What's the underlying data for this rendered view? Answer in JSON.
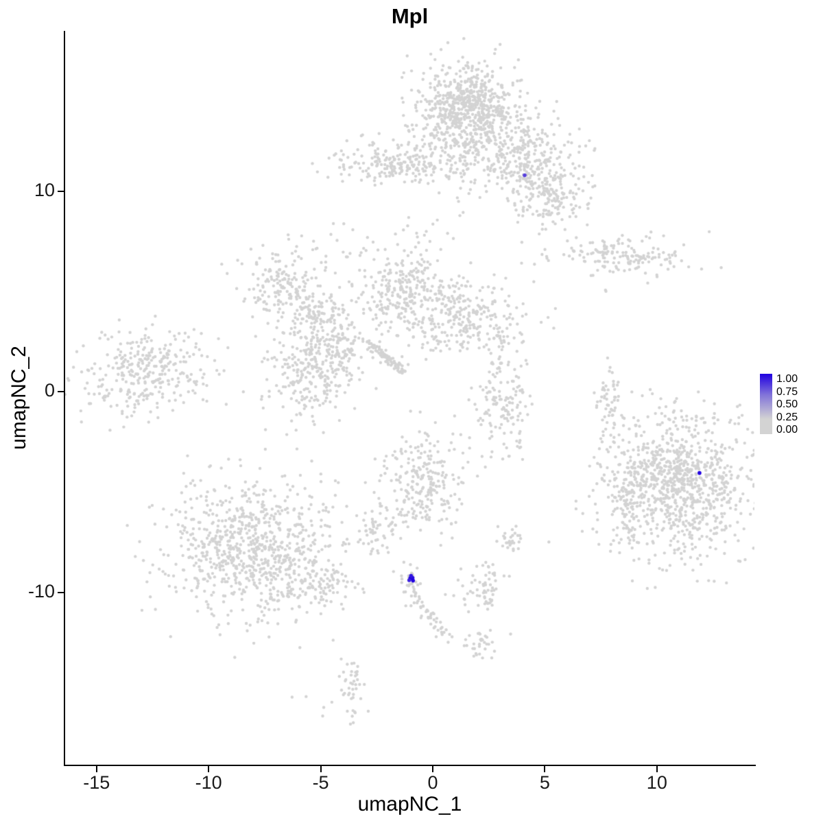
{
  "chart_data": {
    "type": "scatter",
    "title": "Mpl",
    "xlabel": "umapNC_1",
    "ylabel": "umapNC_2",
    "xlim": [
      -16.4,
      14.35
    ],
    "ylim": [
      -18.6,
      18.0
    ],
    "xticks": [
      -15,
      -10,
      -5,
      0,
      5,
      10
    ],
    "yticks": [
      10,
      0,
      -10
    ],
    "grid": false,
    "point_color_low": "#D3D3D3",
    "point_color_high": "#2000E0",
    "point_radius": 2.2,
    "description": "UMAP feature plot of Mpl expression; nearly all cells grey (0.00), a few blue high-expression cells",
    "clusters": [
      {
        "name": "top-main",
        "cx": 1.8,
        "cy": 13.4,
        "rx": 1.35,
        "ry": 1.5,
        "n": 600
      },
      {
        "name": "top-main-core",
        "cx": 1.5,
        "cy": 14.2,
        "rx": 0.85,
        "ry": 0.85,
        "n": 280
      },
      {
        "name": "top-right-branch",
        "cx": 4.3,
        "cy": 11.3,
        "rx": 1.05,
        "ry": 1.1,
        "n": 260
      },
      {
        "name": "top-right-lower",
        "cx": 5.2,
        "cy": 9.7,
        "rx": 0.85,
        "ry": 0.85,
        "n": 130
      },
      {
        "name": "top-left-small",
        "cx": -2.4,
        "cy": 11.5,
        "rx": 1.15,
        "ry": 0.55,
        "n": 150
      },
      {
        "name": "top-bridge",
        "cx": -0.6,
        "cy": 11.3,
        "rx": 0.9,
        "ry": 0.3,
        "n": 40
      },
      {
        "name": "right-wing",
        "cx": 8.6,
        "cy": 6.8,
        "rx": 1.55,
        "ry": 0.5,
        "n": 160
      },
      {
        "name": "right-wing-dot",
        "cx": 7.8,
        "cy": 5.0,
        "rx": 0.08,
        "ry": 0.08,
        "n": 2
      },
      {
        "name": "upper-left-1",
        "cx": -6.6,
        "cy": 5.3,
        "rx": 0.95,
        "ry": 0.85,
        "n": 170
      },
      {
        "name": "upper-left-2",
        "cx": -5.1,
        "cy": 3.9,
        "rx": 0.7,
        "ry": 0.7,
        "n": 110
      },
      {
        "name": "upper-left-3",
        "cx": -5.4,
        "cy": 1.0,
        "rx": 0.95,
        "ry": 1.1,
        "n": 260
      },
      {
        "name": "upper-left-4",
        "cx": -4.3,
        "cy": 2.4,
        "rx": 0.55,
        "ry": 0.55,
        "n": 80
      },
      {
        "name": "upper-left-sparse",
        "cx": -4.2,
        "cy": 7.3,
        "rx": 1.3,
        "ry": 0.9,
        "n": 28
      },
      {
        "name": "center-upper",
        "cx": -1.3,
        "cy": 5.0,
        "rx": 1.0,
        "ry": 1.1,
        "n": 250
      },
      {
        "name": "center-right",
        "cx": 1.4,
        "cy": 3.7,
        "rx": 1.35,
        "ry": 0.95,
        "n": 270
      },
      {
        "name": "center-sparse-top",
        "cx": -0.5,
        "cy": 7.6,
        "rx": 0.8,
        "ry": 0.6,
        "n": 14
      },
      {
        "name": "center-streak",
        "cx": -2.9,
        "cy": 2.5,
        "x2": -1.3,
        "y2": 1.0,
        "jitter": 0.12,
        "n": 80
      },
      {
        "name": "far-left",
        "cx": -12.8,
        "cy": 1.0,
        "rx": 1.5,
        "ry": 1.1,
        "n": 320
      },
      {
        "name": "mid-vertical",
        "cx": 3.1,
        "cy": -0.7,
        "rx": 0.65,
        "ry": 1.4,
        "n": 150
      },
      {
        "name": "thin-vertical",
        "cx": 7.9,
        "cy": -0.9,
        "rx": 0.28,
        "ry": 1.25,
        "n": 60
      },
      {
        "name": "big-right",
        "cx": 10.9,
        "cy": -4.7,
        "rx": 1.6,
        "ry": 1.8,
        "n": 950
      },
      {
        "name": "big-right-edge",
        "cx": 8.8,
        "cy": -5.0,
        "rx": 0.45,
        "ry": 1.5,
        "n": 80
      },
      {
        "name": "center-bottom",
        "cx": -0.4,
        "cy": -4.6,
        "rx": 0.9,
        "ry": 1.4,
        "n": 250
      },
      {
        "name": "bottom-left-big",
        "cx": -8.0,
        "cy": -7.9,
        "rx": 2.0,
        "ry": 1.7,
        "n": 850
      },
      {
        "name": "bottom-left-tail",
        "cx": -4.9,
        "cy": -9.7,
        "rx": 0.8,
        "ry": 0.5,
        "n": 70
      },
      {
        "name": "small-left-mid",
        "cx": -2.4,
        "cy": -7.0,
        "rx": 0.4,
        "ry": 0.5,
        "n": 45
      },
      {
        "name": "small-right-mid",
        "cx": 3.4,
        "cy": -7.4,
        "rx": 0.3,
        "ry": 0.4,
        "n": 28
      },
      {
        "name": "mpl-site-grey",
        "cx": -0.95,
        "cy": -9.6,
        "rx": 0.25,
        "ry": 0.4,
        "n": 30
      },
      {
        "name": "below-trail",
        "cx": -0.8,
        "cy": -10.2,
        "x2": 0.6,
        "y2": -12.3,
        "jitter": 0.16,
        "n": 45
      },
      {
        "name": "small-lower",
        "cx": 2.3,
        "cy": -9.8,
        "rx": 0.55,
        "ry": 0.65,
        "n": 60
      },
      {
        "name": "blob-lower",
        "cx": 2.2,
        "cy": -12.5,
        "rx": 0.4,
        "ry": 0.4,
        "n": 32
      },
      {
        "name": "bottom-small",
        "cx": -3.6,
        "cy": -14.6,
        "rx": 0.3,
        "ry": 0.8,
        "n": 40
      },
      {
        "name": "bottom-sparse",
        "cx": -4.6,
        "cy": -15.9,
        "rx": 1.3,
        "ry": 0.6,
        "n": 6
      }
    ],
    "highlight_points": [
      {
        "x": 4.1,
        "y": 10.8,
        "value": 0.7
      },
      {
        "x": 11.9,
        "y": -4.05,
        "value": 1.0
      },
      {
        "x": -1.0,
        "y": -9.3,
        "value": 1.0
      },
      {
        "x": -0.9,
        "y": -9.28,
        "value": 0.95
      },
      {
        "x": -1.05,
        "y": -9.4,
        "value": 0.85
      },
      {
        "x": -0.88,
        "y": -9.42,
        "value": 1.0
      },
      {
        "x": -0.97,
        "y": -9.18,
        "value": 0.9
      }
    ]
  },
  "legend": {
    "labels": [
      "1.00",
      "0.75",
      "0.50",
      "0.25",
      "0.00"
    ],
    "low_color": "#D3D3D3",
    "high_color": "#2000E0"
  }
}
